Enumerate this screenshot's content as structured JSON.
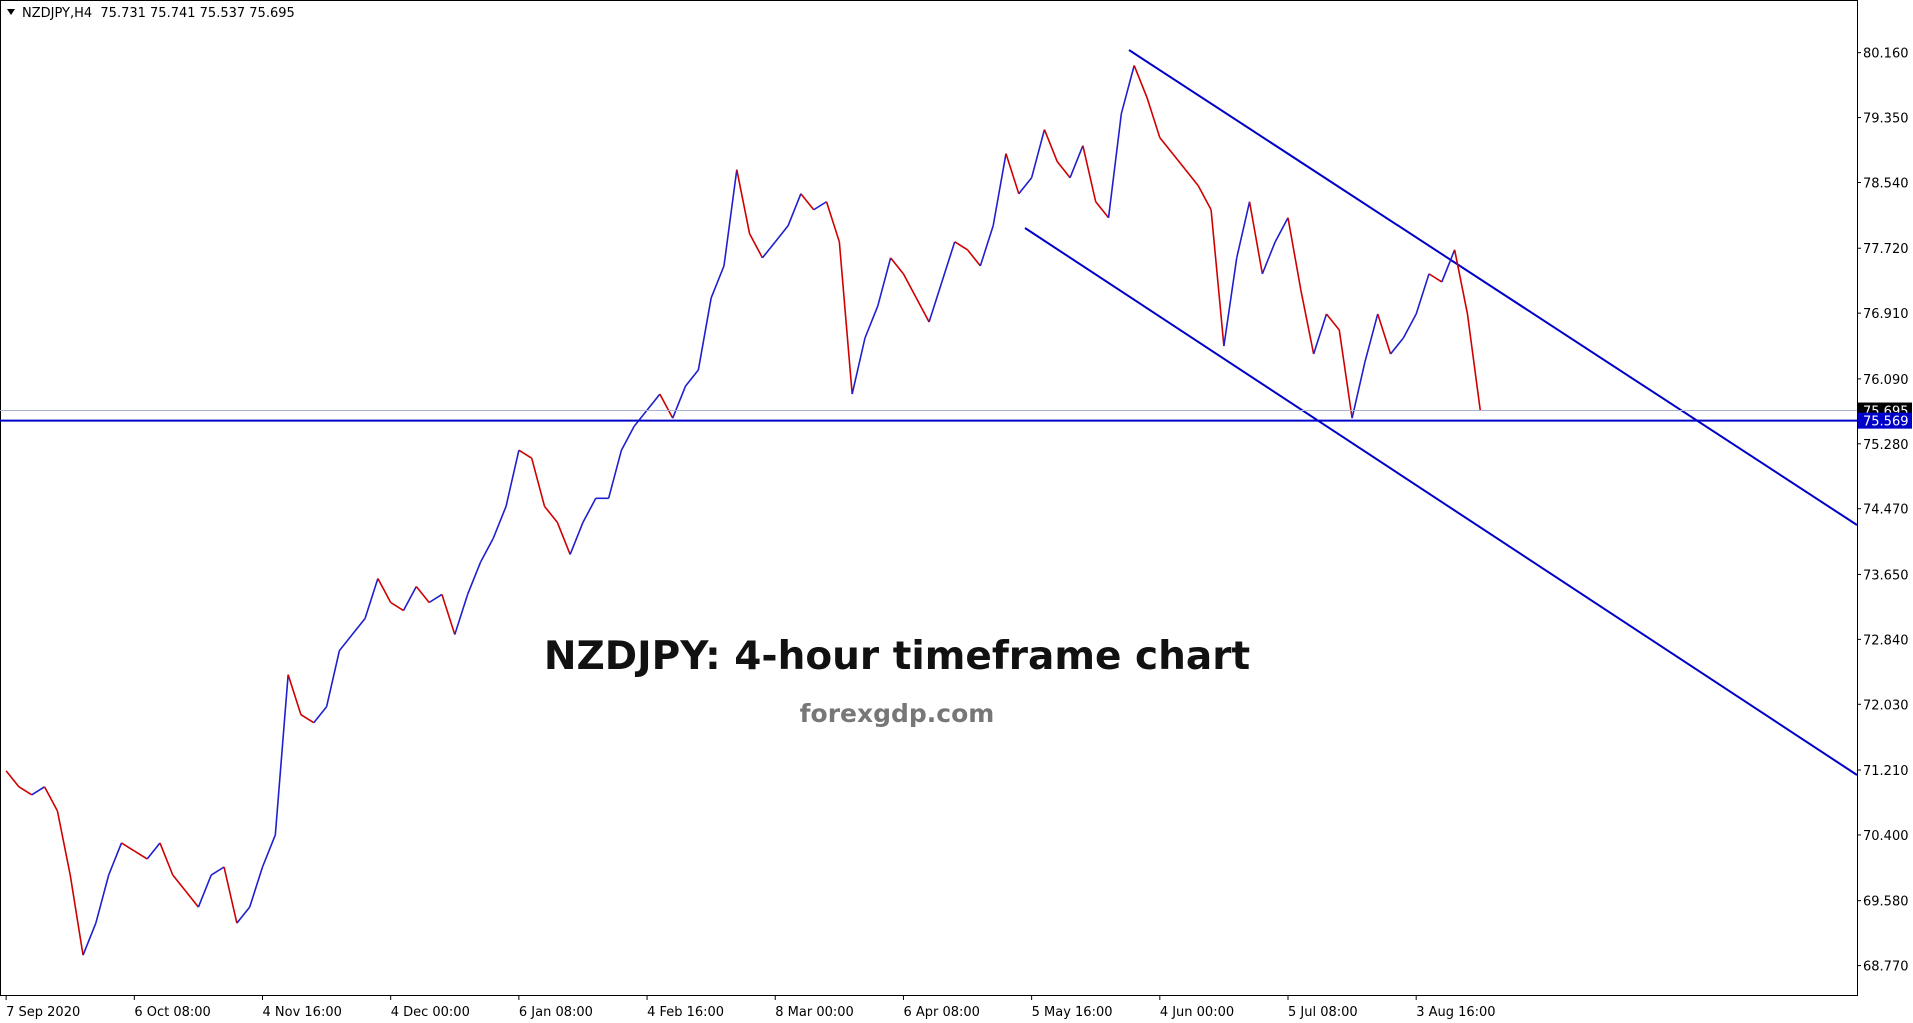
{
  "chart_data": {
    "type": "line",
    "header": "NZDJPY,H4  75.731 75.741 75.537 75.695",
    "title": "NZDJPY: 4-hour timeframe chart",
    "subtitle": "forexgdp.com",
    "up_color": "#1f1fd0",
    "down_color": "#d00000",
    "categories": [
      "7 Sep 2020",
      null,
      null,
      null,
      null,
      null,
      null,
      null,
      null,
      null,
      "6 Oct 08:00",
      null,
      null,
      null,
      null,
      null,
      null,
      null,
      null,
      null,
      "4 Nov 16:00",
      null,
      null,
      null,
      null,
      null,
      null,
      null,
      null,
      null,
      "4 Dec 00:00",
      null,
      null,
      null,
      null,
      null,
      null,
      null,
      null,
      null,
      "6 Jan 08:00",
      null,
      null,
      null,
      null,
      null,
      null,
      null,
      null,
      null,
      "4 Feb 16:00",
      null,
      null,
      null,
      null,
      null,
      null,
      null,
      null,
      null,
      "8 Mar 00:00",
      null,
      null,
      null,
      null,
      null,
      null,
      null,
      null,
      null,
      "6 Apr 08:00",
      null,
      null,
      null,
      null,
      null,
      null,
      null,
      null,
      null,
      "5 May 16:00",
      null,
      null,
      null,
      null,
      null,
      null,
      null,
      null,
      null,
      "4 Jun 00:00",
      null,
      null,
      null,
      null,
      null,
      null,
      null,
      null,
      null,
      "5 Jul 08:00",
      null,
      null,
      null,
      null,
      null,
      null,
      null,
      null,
      null,
      "3 Aug 16:00",
      null,
      null,
      null,
      null,
      null
    ],
    "values": [
      71.2,
      71.0,
      70.9,
      71.0,
      70.7,
      69.9,
      68.9,
      69.3,
      69.9,
      70.3,
      70.2,
      70.1,
      70.3,
      69.9,
      69.7,
      69.5,
      69.9,
      70.0,
      69.3,
      69.5,
      70.0,
      70.4,
      72.4,
      71.9,
      71.8,
      72.0,
      72.7,
      72.9,
      73.1,
      73.6,
      73.3,
      73.2,
      73.5,
      73.3,
      73.4,
      72.9,
      73.4,
      73.8,
      74.1,
      74.5,
      75.2,
      75.1,
      74.5,
      74.3,
      73.9,
      74.3,
      74.6,
      74.6,
      75.2,
      75.5,
      75.7,
      75.9,
      75.6,
      76.0,
      76.2,
      77.1,
      77.5,
      78.7,
      77.9,
      77.6,
      77.8,
      78.0,
      78.4,
      78.2,
      78.3,
      77.8,
      75.9,
      76.6,
      77.0,
      77.6,
      77.4,
      77.1,
      76.8,
      77.3,
      77.8,
      77.7,
      77.5,
      78.0,
      78.9,
      78.4,
      78.6,
      79.2,
      78.8,
      78.6,
      79.0,
      78.3,
      78.1,
      79.4,
      80.0,
      79.6,
      79.1,
      78.9,
      78.7,
      78.5,
      78.2,
      76.5,
      77.6,
      78.3,
      77.4,
      77.8,
      78.1,
      77.2,
      76.4,
      76.9,
      76.7,
      75.6,
      76.3,
      76.9,
      76.4,
      76.6,
      76.9,
      77.4,
      77.3,
      77.7,
      76.9,
      75.695
    ],
    "ylim": [
      68.403,
      80.817
    ],
    "yticks": [
      {
        "value": 68.77,
        "label": "68.770"
      },
      {
        "value": 69.58,
        "label": "69.580"
      },
      {
        "value": 70.4,
        "label": "70.400"
      },
      {
        "value": 71.21,
        "label": "71.210"
      },
      {
        "value": 72.03,
        "label": "72.030"
      },
      {
        "value": 72.84,
        "label": "72.840"
      },
      {
        "value": 73.65,
        "label": "73.650"
      },
      {
        "value": 74.47,
        "label": "74.470"
      },
      {
        "value": 75.28,
        "label": "75.280"
      },
      {
        "value": 76.09,
        "label": "76.090"
      },
      {
        "value": 76.91,
        "label": "76.910"
      },
      {
        "value": 77.72,
        "label": "77.720"
      },
      {
        "value": 78.54,
        "label": "78.540"
      },
      {
        "value": 79.35,
        "label": "79.350"
      },
      {
        "value": 80.16,
        "label": "80.160"
      }
    ],
    "hlines": [
      {
        "value": 75.695,
        "color": "#a8b0d0",
        "label_bg": "#000000"
      },
      {
        "value": 75.569,
        "color": "#0000c8",
        "label_bg": "#0000c8"
      }
    ]
  }
}
